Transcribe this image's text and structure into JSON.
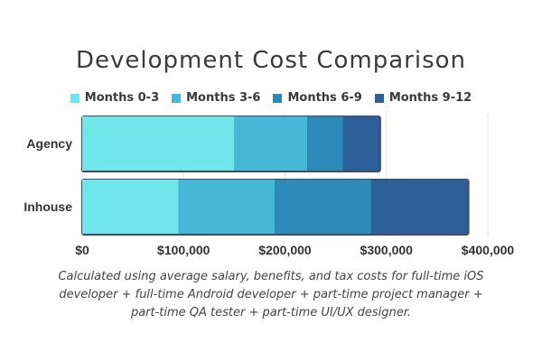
{
  "chart_data": {
    "type": "bar",
    "orientation": "horizontal",
    "stacked": true,
    "title": "Development Cost Comparison",
    "categories": [
      "Agency",
      "Inhouse"
    ],
    "series": [
      {
        "name": "Months 0-3",
        "color": "#6ee6ea",
        "values": [
          150000,
          95000
        ]
      },
      {
        "name": "Months 3-6",
        "color": "#45b8d8",
        "values": [
          72000,
          95000
        ]
      },
      {
        "name": "Months 6-9",
        "color": "#2b8ab8",
        "values": [
          35000,
          95000
        ]
      },
      {
        "name": "Months 9-12",
        "color": "#2d5f99",
        "values": [
          36000,
          95000
        ]
      }
    ],
    "xlim": [
      0,
      400000
    ],
    "xticks": [
      0,
      100000,
      200000,
      300000,
      400000
    ],
    "xtick_labels": [
      "$0",
      "$100,000",
      "$200,000",
      "$300,000",
      "$400,000"
    ],
    "grid": true,
    "legend_position": "top"
  },
  "footnote": "Calculated using average salary, benefits, and tax costs for full-time iOS developer + full-time Android developer + part-time project manager + part-time QA tester + part-time UI/UX designer."
}
